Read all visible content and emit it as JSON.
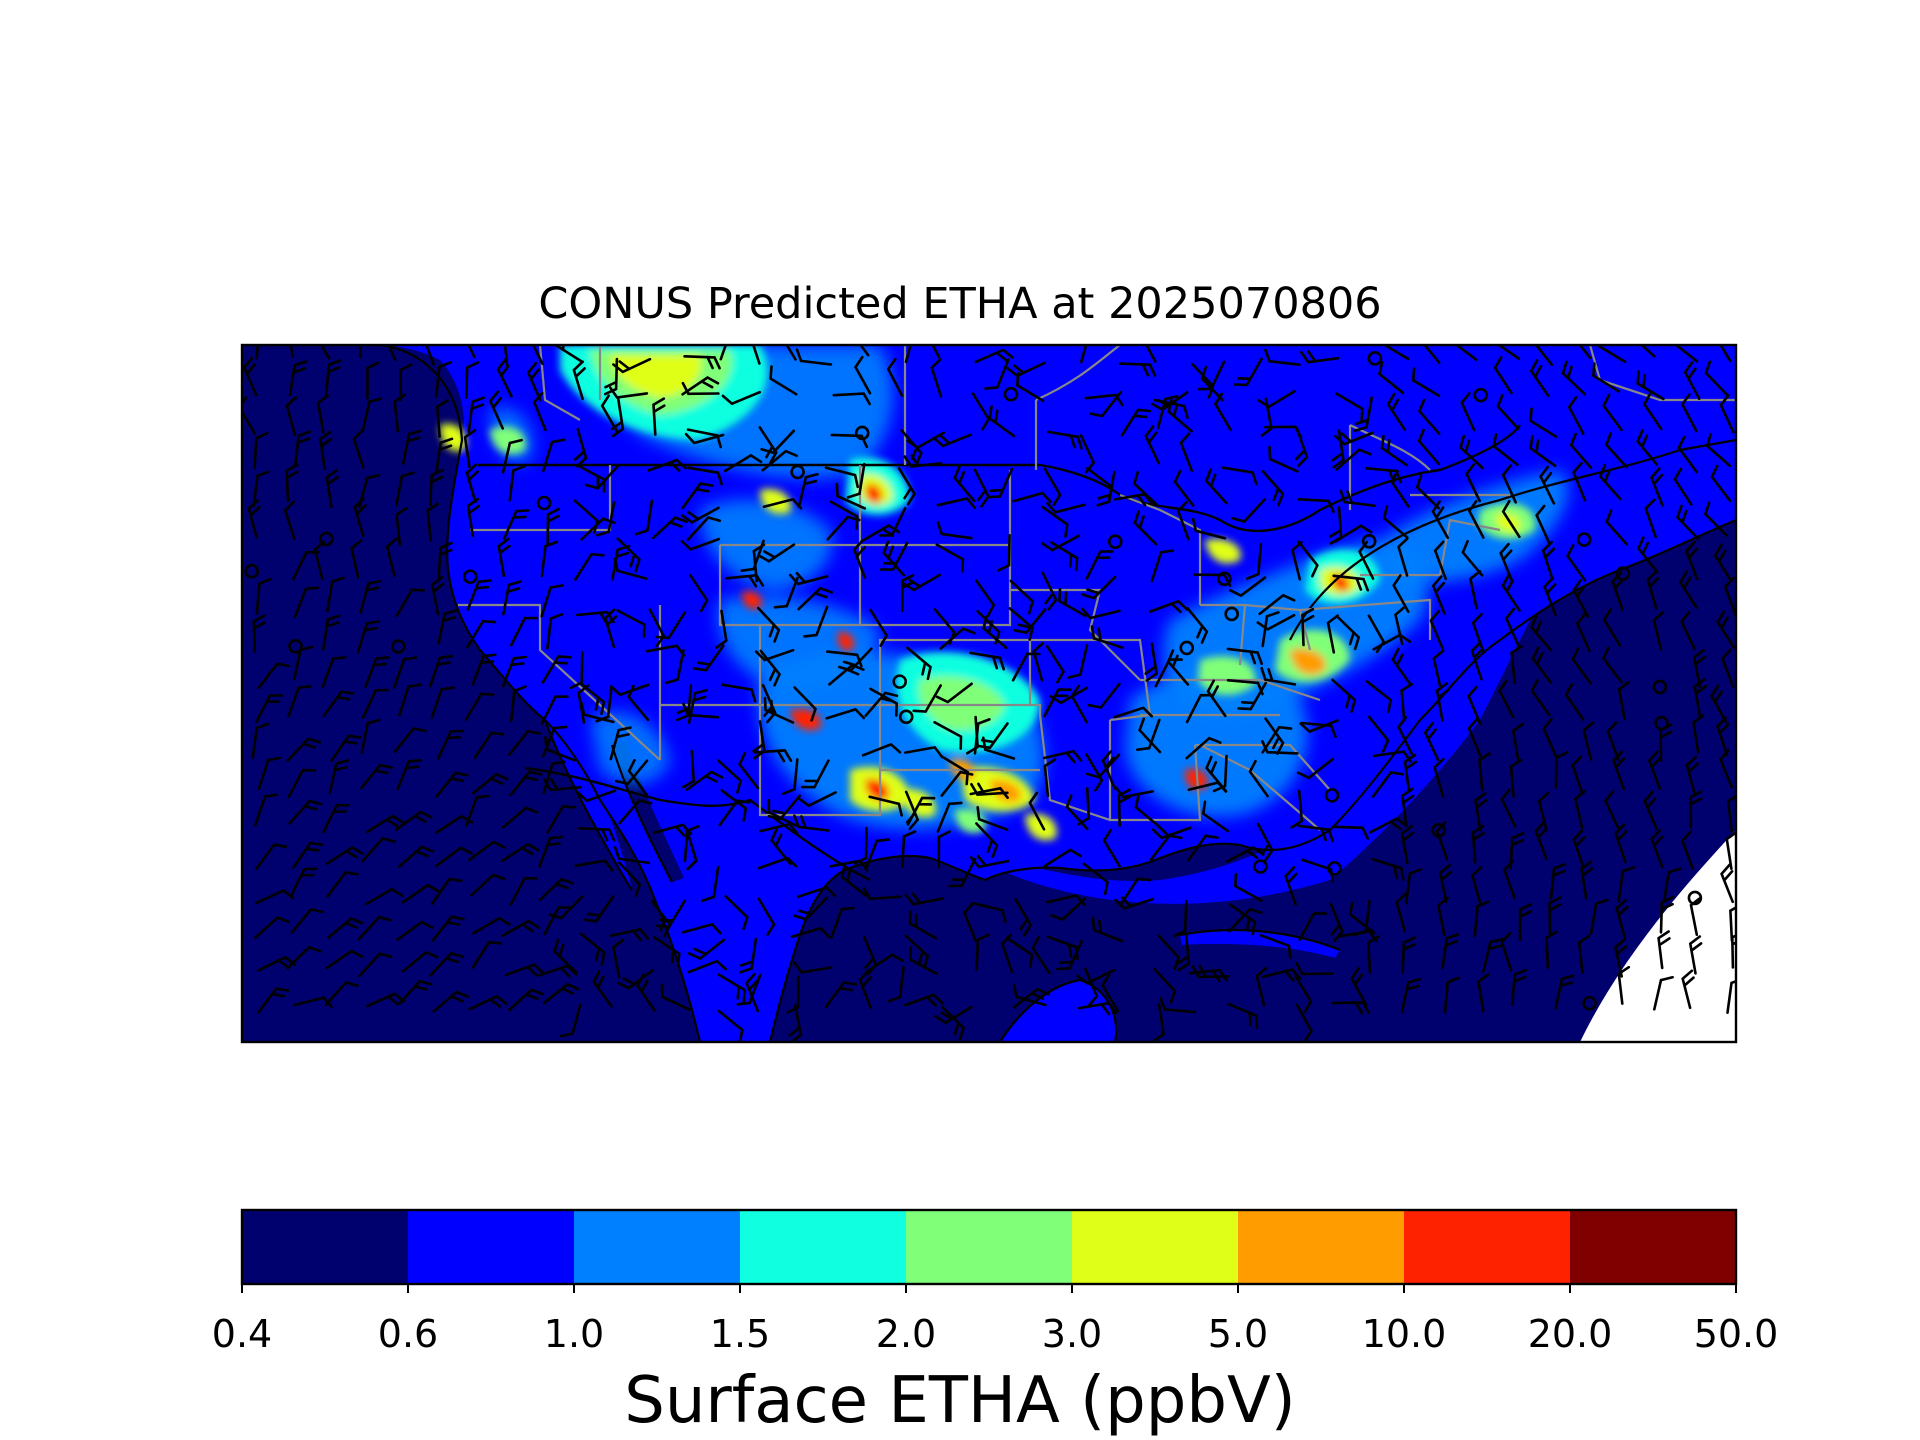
{
  "title": "CONUS Predicted ETHA at 2025070806",
  "colorbar": {
    "label": "Surface ETHA (ppbV)",
    "ticks": [
      "0.4",
      "0.6",
      "1.0",
      "1.5",
      "2.0",
      "3.0",
      "5.0",
      "10.0",
      "20.0",
      "50.0"
    ],
    "colors": [
      "#00006e",
      "#0000ff",
      "#0080ff",
      "#10ffe0",
      "#80ff78",
      "#e0ff18",
      "#ff9c00",
      "#ff2200",
      "#800000"
    ]
  },
  "map": {
    "region": "CONUS",
    "ocean_color": "#00006e",
    "land_base_color": "#0000ff",
    "missing_color": "#ffffff"
  }
}
